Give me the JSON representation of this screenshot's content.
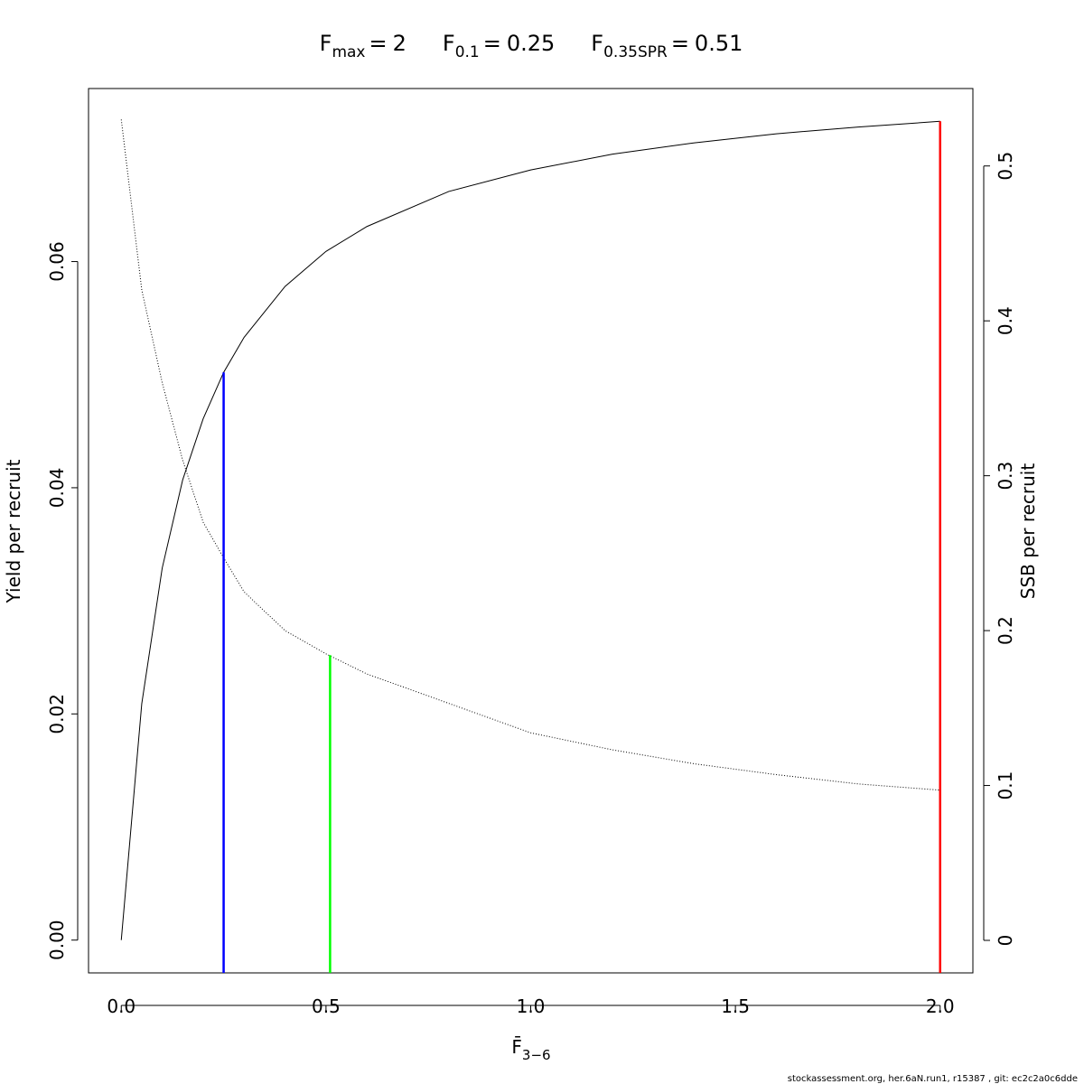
{
  "chart_data": {
    "type": "line",
    "title": [
      {
        "symbol": "F",
        "subscript": "max",
        "relation": "=",
        "value": 2
      },
      {
        "symbol": "F",
        "subscript": "0.1",
        "relation": "=",
        "value": 0.25
      },
      {
        "symbol": "F",
        "subscript": "0.35SPR",
        "relation": "=",
        "value": 0.51
      }
    ],
    "xlabel": {
      "symbol": "F̄",
      "subscript": "3−6"
    },
    "ylabel": "Yield per recruit",
    "y2label": "SSB per recruit",
    "footer": "stockassessment.org, her.6aN.run1, r15387 , git: ec2c2a0c6dde",
    "x": [
      0,
      0.05,
      0.1,
      0.15,
      0.2,
      0.25,
      0.3,
      0.4,
      0.5,
      0.6,
      0.8,
      1.0,
      1.2,
      1.4,
      1.6,
      1.8,
      2.0
    ],
    "series": [
      {
        "color": "#000000",
        "line_style": "solid",
        "axis": "y",
        "values": [
          0,
          0.0209,
          0.0329,
          0.0407,
          0.0461,
          0.0502,
          0.0533,
          0.0578,
          0.0609,
          0.0631,
          0.0662,
          0.0681,
          0.0695,
          0.0705,
          0.0713,
          0.0719,
          0.0724
        ]
      },
      {
        "color": "#000000",
        "line_style": "dotted",
        "axis": "y2",
        "values": [
          0.53,
          0.42,
          0.36,
          0.31,
          0.27,
          0.247,
          0.225,
          0.2,
          0.185,
          0.172,
          0.153,
          0.134,
          0.123,
          0.114,
          0.107,
          0.101,
          0.097
        ]
      }
    ],
    "reference_lines": [
      {
        "x": 0.25,
        "y": 0.0502,
        "color": "#0000ff"
      },
      {
        "x": 0.51,
        "y": 0.0252,
        "color": "#00ff00"
      },
      {
        "x": 2,
        "y": 0.0724,
        "color": "#ff0000"
      }
    ],
    "xlim": [
      -0.08,
      2.08
    ],
    "xticks": [
      {
        "value": 0,
        "label": "0.0"
      },
      {
        "value": 0.5,
        "label": "0.5"
      },
      {
        "value": 1,
        "label": "1.0"
      },
      {
        "value": 1.5,
        "label": "1.5"
      },
      {
        "value": 2,
        "label": "2.0"
      }
    ],
    "ylim": [
      -0.0029,
      0.0753
    ],
    "yticks": [
      {
        "value": 0,
        "label": "0.00"
      },
      {
        "value": 0.02,
        "label": "0.02"
      },
      {
        "value": 0.04,
        "label": "0.04"
      },
      {
        "value": 0.06,
        "label": "0.06"
      }
    ],
    "y2lim": [
      -0.021,
      0.55
    ],
    "y2ticks": [
      0,
      0.1,
      0.2,
      0.3,
      0.4,
      0.5
    ]
  }
}
